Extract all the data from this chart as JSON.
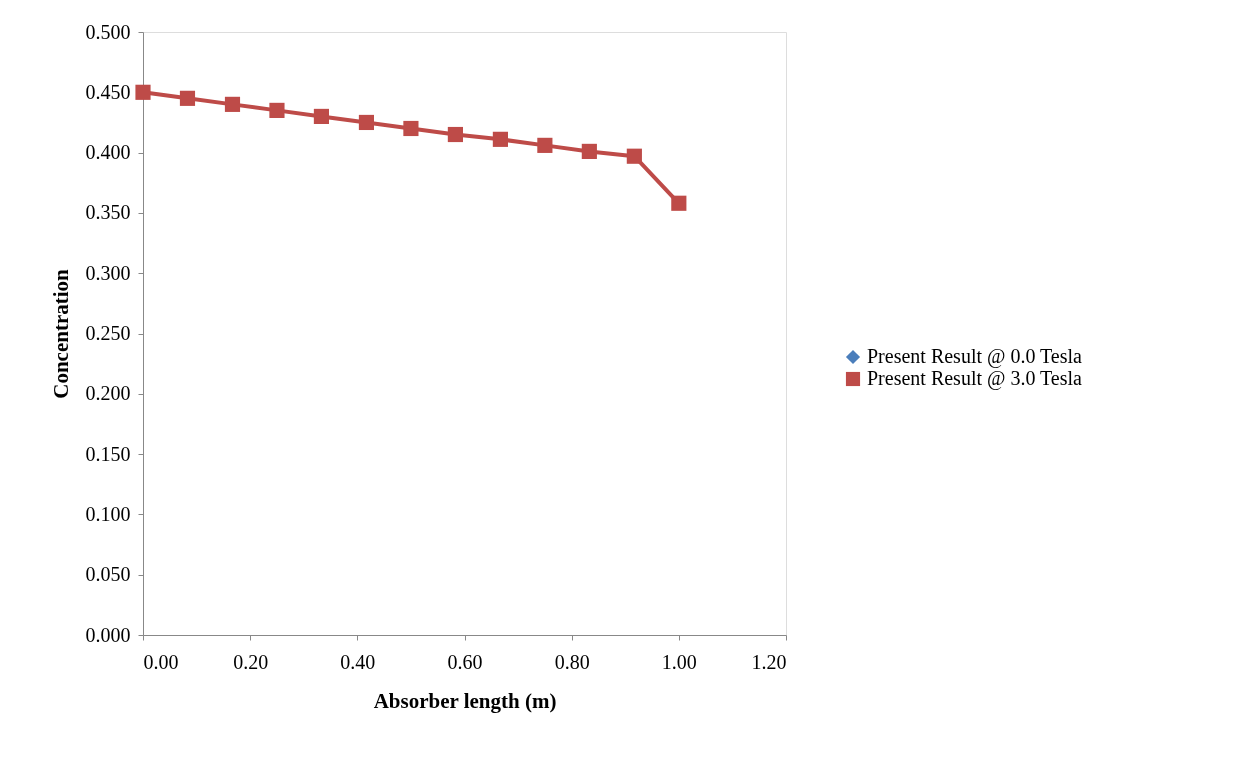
{
  "chart_data": {
    "type": "line",
    "xlabel": "Absorber length (m)",
    "ylabel": "Concentration",
    "x": [
      0,
      0.083,
      0.167,
      0.25,
      0.333,
      0.417,
      0.5,
      0.583,
      0.667,
      0.75,
      0.833,
      0.917,
      1.0
    ],
    "series": [
      {
        "name": "Present Result @ 0.0 Tesla",
        "color": "#4a7ebb",
        "marker": "diamond",
        "values": [
          null,
          null,
          null,
          null,
          null,
          null,
          null,
          null,
          null,
          null,
          null,
          null,
          null
        ]
      },
      {
        "name": "Present Result @ 3.0 Tesla",
        "color": "#be4b48",
        "marker": "square",
        "values": [
          0.45,
          0.445,
          0.44,
          0.435,
          0.43,
          0.425,
          0.42,
          0.415,
          0.411,
          0.406,
          0.401,
          0.397,
          0.358
        ]
      }
    ],
    "xlim": [
      0,
      1.2
    ],
    "xticks": [
      {
        "value": 0,
        "label": "0.00"
      },
      {
        "value": 0.2,
        "label": "0.20"
      },
      {
        "value": 0.4,
        "label": "0.40"
      },
      {
        "value": 0.6,
        "label": "0.60"
      },
      {
        "value": 0.8,
        "label": "0.80"
      },
      {
        "value": 1.0,
        "label": "1.00"
      },
      {
        "value": 1.2,
        "label": "1.20"
      }
    ],
    "ylim": [
      0,
      0.5
    ],
    "yticks": [
      {
        "value": 0,
        "label": "0.000"
      },
      {
        "value": 0.05,
        "label": "0.050"
      },
      {
        "value": 0.1,
        "label": "0.100"
      },
      {
        "value": 0.15,
        "label": "0.150"
      },
      {
        "value": 0.2,
        "label": "0.200"
      },
      {
        "value": 0.25,
        "label": "0.250"
      },
      {
        "value": 0.3,
        "label": "0.300"
      },
      {
        "value": 0.35,
        "label": "0.350"
      },
      {
        "value": 0.4,
        "label": "0.400"
      },
      {
        "value": 0.45,
        "label": "0.450"
      },
      {
        "value": 0.5,
        "label": "0.500"
      }
    ],
    "grid": false,
    "legend": "right"
  }
}
